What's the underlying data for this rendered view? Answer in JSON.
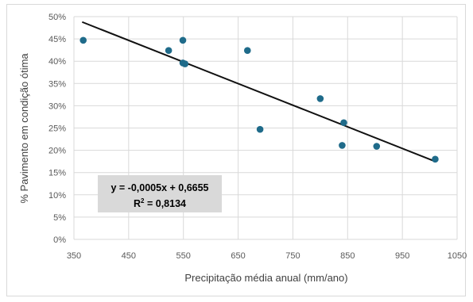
{
  "chart_data": {
    "type": "scatter",
    "xlabel": "Precipitação média anual (mm/ano)",
    "ylabel": "% Pavimento em condição ótima",
    "xlim": [
      350,
      1050
    ],
    "ylim": [
      0,
      0.5
    ],
    "x_ticks": [
      350,
      450,
      550,
      650,
      750,
      850,
      950,
      1050
    ],
    "x_tick_labels": [
      "350",
      "450",
      "550",
      "650",
      "750",
      "850",
      "950",
      "1050"
    ],
    "y_ticks": [
      0,
      0.05,
      0.1,
      0.15,
      0.2,
      0.25,
      0.3,
      0.35,
      0.4,
      0.45,
      0.5
    ],
    "y_tick_labels": [
      "0%",
      "5%",
      "10%",
      "15%",
      "20%",
      "25%",
      "30%",
      "35%",
      "40%",
      "45%",
      "50%"
    ],
    "grid": "major-both",
    "marker_color": "#1f6b8a",
    "line_color": "#111111",
    "series": [
      {
        "points": [
          {
            "x": 367,
            "y": 0.447
          },
          {
            "x": 523,
            "y": 0.424
          },
          {
            "x": 549,
            "y": 0.447
          },
          {
            "x": 549,
            "y": 0.396
          },
          {
            "x": 553,
            "y": 0.394
          },
          {
            "x": 667,
            "y": 0.424
          },
          {
            "x": 690,
            "y": 0.247
          },
          {
            "x": 800,
            "y": 0.316
          },
          {
            "x": 840,
            "y": 0.211
          },
          {
            "x": 843,
            "y": 0.262
          },
          {
            "x": 903,
            "y": 0.209
          },
          {
            "x": 1010,
            "y": 0.18
          }
        ]
      }
    ],
    "trendline": {
      "type": "linear",
      "x": [
        365,
        1010
      ],
      "y": [
        0.488,
        0.175
      ]
    },
    "annotation": {
      "line1": "y = -0,0005x + 0,6655",
      "line2_main": "R",
      "line2_sup": "2",
      "line2_rest": " = 0,8134",
      "box_color": "#d9d9d9"
    }
  }
}
